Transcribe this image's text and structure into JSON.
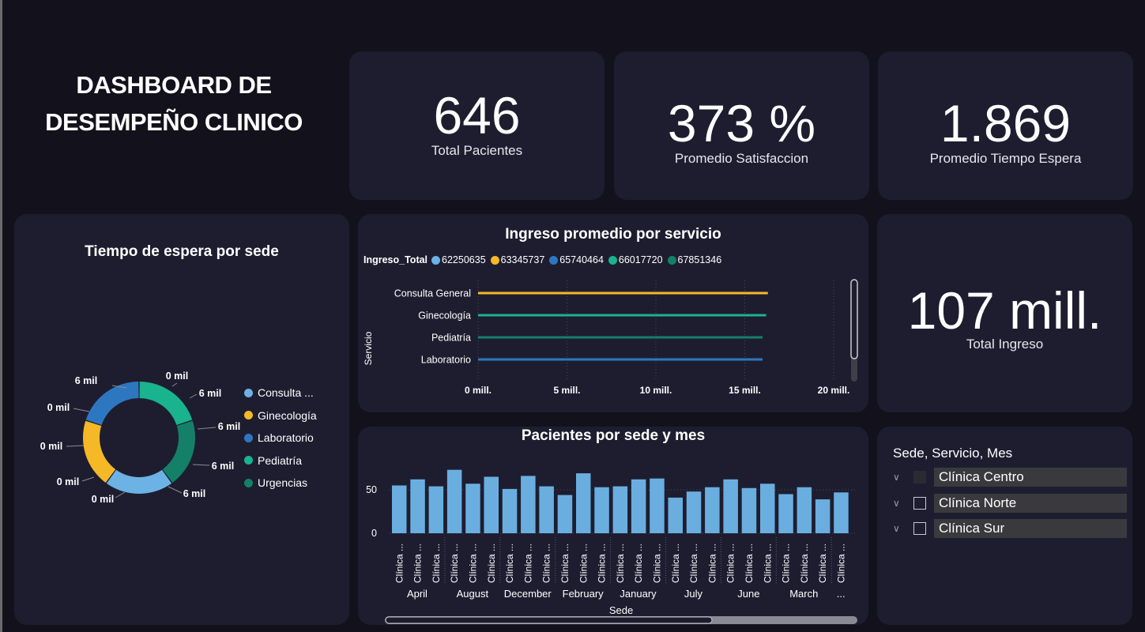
{
  "dashboard": {
    "title_line1": "DASHBOARD DE",
    "title_line2": "DESEMPEÑO CLINICO"
  },
  "kpis": {
    "total_pacientes": {
      "value": "646",
      "label": "Total Pacientes"
    },
    "promedio_satisfaccion": {
      "value": "373 %",
      "label": "Promedio Satisfaccion"
    },
    "promedio_tiempo_espera": {
      "value": "1.869",
      "label": "Promedio Tiempo Espera"
    },
    "total_ingreso": {
      "value": "107 mill.",
      "label": "Total Ingreso"
    }
  },
  "donut": {
    "title": "Tiempo de espera por sede",
    "legend": [
      {
        "label": "Consulta ...",
        "color": "#6cb2e4"
      },
      {
        "label": "Ginecología",
        "color": "#f5b826"
      },
      {
        "label": "Laboratorio",
        "color": "#2d77c0"
      },
      {
        "label": "Pediatría",
        "color": "#19b38d"
      },
      {
        "label": "Urgencias",
        "color": "#148067"
      }
    ],
    "data_labels": [
      "6 mil",
      "0 mil",
      "6 mil",
      "0 mil",
      "6 mil",
      "0 mil",
      "6 mil",
      "0 mil",
      "6 mil",
      "0 mil"
    ]
  },
  "ingreso_chart": {
    "title": "Ingreso promedio por servicio",
    "legend_title": "Ingreso_Total",
    "y_axis_title": "Servicio",
    "colors": {
      "consulta": "#f5b826",
      "gine": "#19b38d",
      "pedia": "#148067",
      "lab": "#2d77c0"
    }
  },
  "pacientes_chart": {
    "title": "Pacientes por sede y mes",
    "x_axis_title": "Sede",
    "bar_color": "#6aaee0",
    "sede_label": "Clínica ...",
    "more_label": "..."
  },
  "slicer": {
    "title": "Sede, Servicio, Mes",
    "items": [
      {
        "label": "Clínica Centro",
        "checked": true
      },
      {
        "label": "Clínica Norte",
        "checked": false
      },
      {
        "label": "Clínica Sur",
        "checked": false
      }
    ]
  },
  "chart_data": [
    {
      "type": "pie",
      "title": "Tiempo de espera por sede",
      "categories": [
        "Consulta General",
        "Ginecología",
        "Laboratorio",
        "Pediatría",
        "Urgencias"
      ],
      "values": [
        6,
        6,
        6,
        6,
        6
      ],
      "data_labels": [
        "6 mil",
        "0 mil",
        "6 mil",
        "0 mil",
        "6 mil",
        "0 mil",
        "6 mil",
        "0 mil",
        "6 mil",
        "0 mil"
      ]
    },
    {
      "type": "bar",
      "orientation": "horizontal",
      "title": "Ingreso promedio por servicio",
      "ylabel": "Servicio",
      "categories": [
        "Consulta General",
        "Ginecología",
        "Pediatría",
        "Laboratorio"
      ],
      "legend_title": "Ingreso_Total",
      "series": [
        {
          "name": "62250635",
          "color": "#6cb2e4"
        },
        {
          "name": "63345737",
          "color": "#f5b826"
        },
        {
          "name": "65740464",
          "color": "#2d77c0"
        },
        {
          "name": "66017720",
          "color": "#19b38d"
        },
        {
          "name": "67851346",
          "color": "#148067"
        }
      ],
      "values": [
        16.3,
        16.2,
        16.0,
        16.0
      ],
      "x_ticks": [
        "0 mill.",
        "5 mill.",
        "10 mill.",
        "15 mill.",
        "20 mill."
      ],
      "xlim": [
        0,
        20
      ]
    },
    {
      "type": "bar",
      "title": "Pacientes por sede y mes",
      "xlabel": "Sede",
      "month_groups": [
        "April",
        "August",
        "December",
        "February",
        "January",
        "July",
        "June",
        "March",
        "..."
      ],
      "bars_per_group": 3,
      "values": [
        55,
        62,
        54,
        73,
        57,
        65,
        51,
        66,
        54,
        44,
        69,
        53,
        54,
        62,
        63,
        41,
        48,
        53,
        62,
        52,
        57,
        45,
        53,
        39,
        47
      ],
      "y_ticks": [
        0,
        50
      ],
      "ylim": [
        0,
        80
      ]
    }
  ]
}
